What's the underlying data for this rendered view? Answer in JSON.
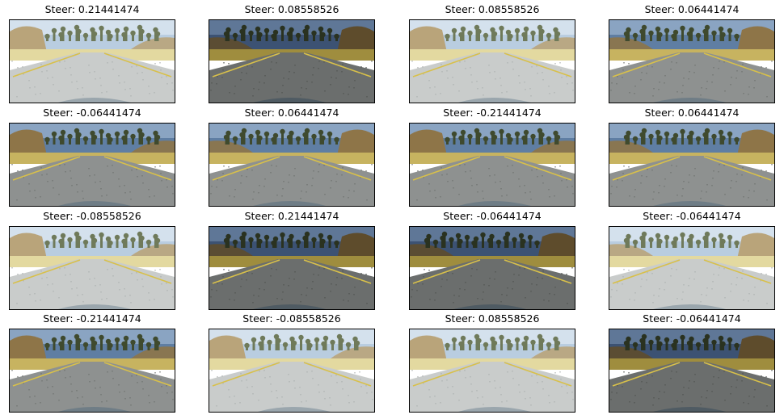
{
  "figure": {
    "panels": [
      {
        "title": "Steer: 0.21441474",
        "brightness": "bright",
        "mirrored": false
      },
      {
        "title": "Steer: 0.08558526",
        "brightness": "dark",
        "mirrored": true
      },
      {
        "title": "Steer: 0.08558526",
        "brightness": "bright",
        "mirrored": false
      },
      {
        "title": "Steer: 0.06441474",
        "brightness": "medium",
        "mirrored": true
      },
      {
        "title": "Steer: -0.06441474",
        "brightness": "medium",
        "mirrored": false
      },
      {
        "title": "Steer: 0.06441474",
        "brightness": "medium",
        "mirrored": true
      },
      {
        "title": "Steer: -0.21441474",
        "brightness": "medium",
        "mirrored": false
      },
      {
        "title": "Steer: 0.06441474",
        "brightness": "medium",
        "mirrored": true
      },
      {
        "title": "Steer: -0.08558526",
        "brightness": "bright",
        "mirrored": false
      },
      {
        "title": "Steer: 0.21441474",
        "brightness": "dark",
        "mirrored": true
      },
      {
        "title": "Steer: -0.06441474",
        "brightness": "dark",
        "mirrored": true
      },
      {
        "title": "Steer: -0.06441474",
        "brightness": "bright",
        "mirrored": true
      },
      {
        "title": "Steer: -0.21441474",
        "brightness": "medium",
        "mirrored": false
      },
      {
        "title": "Steer: -0.08558526",
        "brightness": "bright",
        "mirrored": false
      },
      {
        "title": "Steer: 0.08558526",
        "brightness": "bright",
        "mirrored": false
      },
      {
        "title": "Steer: -0.06441474",
        "brightness": "dark",
        "mirrored": true
      }
    ]
  }
}
